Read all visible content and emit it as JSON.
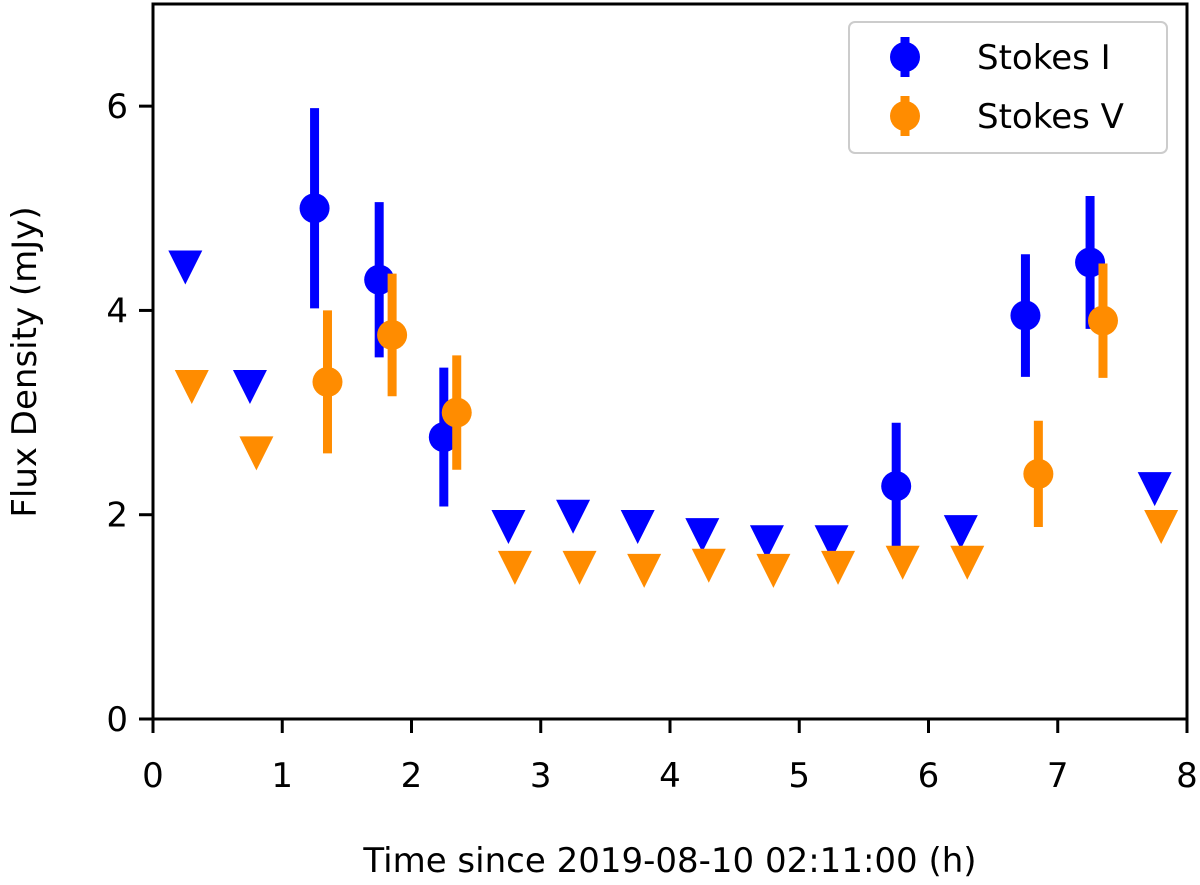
{
  "chart_data": {
    "type": "scatter",
    "title": "",
    "xlabel": "Time since 2019-08-10 02:11:00 (h)",
    "ylabel": "Flux Density (mJy)",
    "xlim": [
      0,
      8
    ],
    "ylim": [
      0,
      7
    ],
    "xticks": [
      "0",
      "1",
      "2",
      "3",
      "4",
      "5",
      "6",
      "7",
      "8"
    ],
    "yticks": [
      "0",
      "2",
      "4",
      "6"
    ],
    "grid": false,
    "legend_position": "top-right",
    "series": [
      {
        "name": "Stokes I",
        "color": "#0000ff",
        "detections": [
          {
            "x": 1.25,
            "y": 5.0,
            "err": 0.98
          },
          {
            "x": 1.75,
            "y": 4.3,
            "err": 0.76
          },
          {
            "x": 2.25,
            "y": 2.76,
            "err": 0.68
          },
          {
            "x": 5.75,
            "y": 2.28,
            "err": 0.62
          },
          {
            "x": 6.75,
            "y": 3.95,
            "err": 0.6
          },
          {
            "x": 7.25,
            "y": 4.47,
            "err": 0.65
          }
        ],
        "upper_limits": [
          {
            "x": 0.25,
            "y": 4.42
          },
          {
            "x": 0.75,
            "y": 3.25
          },
          {
            "x": 2.75,
            "y": 1.88
          },
          {
            "x": 3.25,
            "y": 1.98
          },
          {
            "x": 3.75,
            "y": 1.88
          },
          {
            "x": 4.25,
            "y": 1.8
          },
          {
            "x": 4.75,
            "y": 1.73
          },
          {
            "x": 5.25,
            "y": 1.73
          },
          {
            "x": 6.25,
            "y": 1.83
          },
          {
            "x": 7.75,
            "y": 2.25
          }
        ]
      },
      {
        "name": "Stokes V",
        "color": "#ff8c00",
        "detections": [
          {
            "x": 1.35,
            "y": 3.3,
            "err": 0.7
          },
          {
            "x": 1.85,
            "y": 3.76,
            "err": 0.6
          },
          {
            "x": 2.35,
            "y": 3.0,
            "err": 0.56
          },
          {
            "x": 6.85,
            "y": 2.4,
            "err": 0.52
          },
          {
            "x": 7.35,
            "y": 3.9,
            "err": 0.56
          }
        ],
        "upper_limits": [
          {
            "x": 0.3,
            "y": 3.25
          },
          {
            "x": 0.8,
            "y": 2.6
          },
          {
            "x": 2.8,
            "y": 1.48
          },
          {
            "x": 3.3,
            "y": 1.48
          },
          {
            "x": 3.8,
            "y": 1.45
          },
          {
            "x": 4.3,
            "y": 1.5
          },
          {
            "x": 4.8,
            "y": 1.45
          },
          {
            "x": 5.3,
            "y": 1.48
          },
          {
            "x": 5.8,
            "y": 1.53
          },
          {
            "x": 6.3,
            "y": 1.53
          },
          {
            "x": 7.8,
            "y": 1.88
          }
        ]
      }
    ]
  }
}
